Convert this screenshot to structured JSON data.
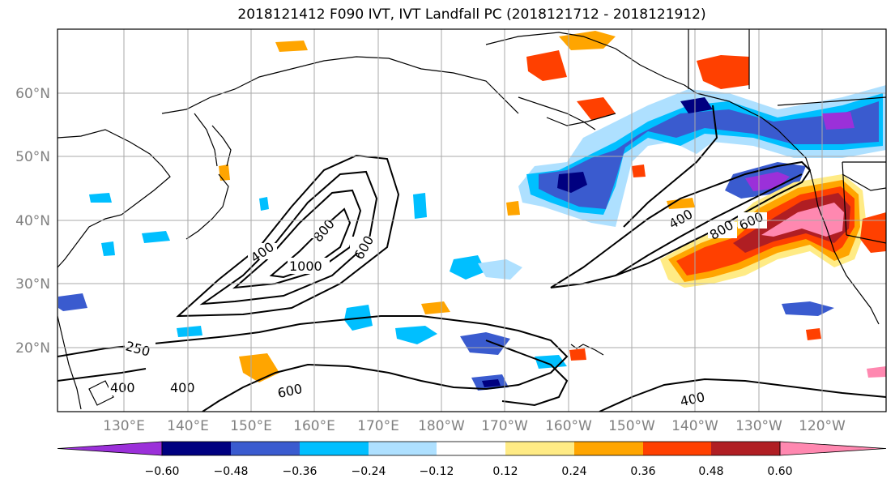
{
  "title": "2018121412 F090 IVT, IVT Landfall PC (2018121712 - 2018121912)",
  "longitude_ticks": [
    "130°E",
    "140°E",
    "150°E",
    "160°E",
    "170°E",
    "180°W",
    "170°W",
    "160°W",
    "150°W",
    "140°W",
    "130°W",
    "120°W"
  ],
  "latitude_ticks": [
    "60°N",
    "50°N",
    "40°N",
    "30°N",
    "20°N"
  ],
  "contour_labels": [
    "400",
    "800",
    "1000",
    "600",
    "400",
    "800",
    "600",
    "250",
    "400",
    "400",
    "600",
    "400"
  ],
  "colorbar": {
    "ticks": [
      "−0.60",
      "−0.48",
      "−0.36",
      "−0.24",
      "−0.12",
      "0.12",
      "0.24",
      "0.36",
      "0.48",
      "0.60"
    ],
    "colors": [
      "#9b30d9",
      "#000080",
      "#3a5bcf",
      "#00bfff",
      "#aee0ff",
      "#ffffff",
      "#ffeb85",
      "#ffa500",
      "#ff4000",
      "#b01e23",
      "#ff88b0"
    ]
  },
  "colors": {
    "neg_strong": "#3a5bcf",
    "neg_mid": "#00bfff",
    "neg_light": "#aee0ff",
    "neg_deep": "#000080",
    "neg_purple": "#9b30d9",
    "pos_light": "#ffeb85",
    "pos_mid": "#ffa500",
    "pos_orange": "#ff4000",
    "pos_dark": "#b01e23",
    "pos_pink": "#ff88b0",
    "grid": "#aaaaaa"
  }
}
